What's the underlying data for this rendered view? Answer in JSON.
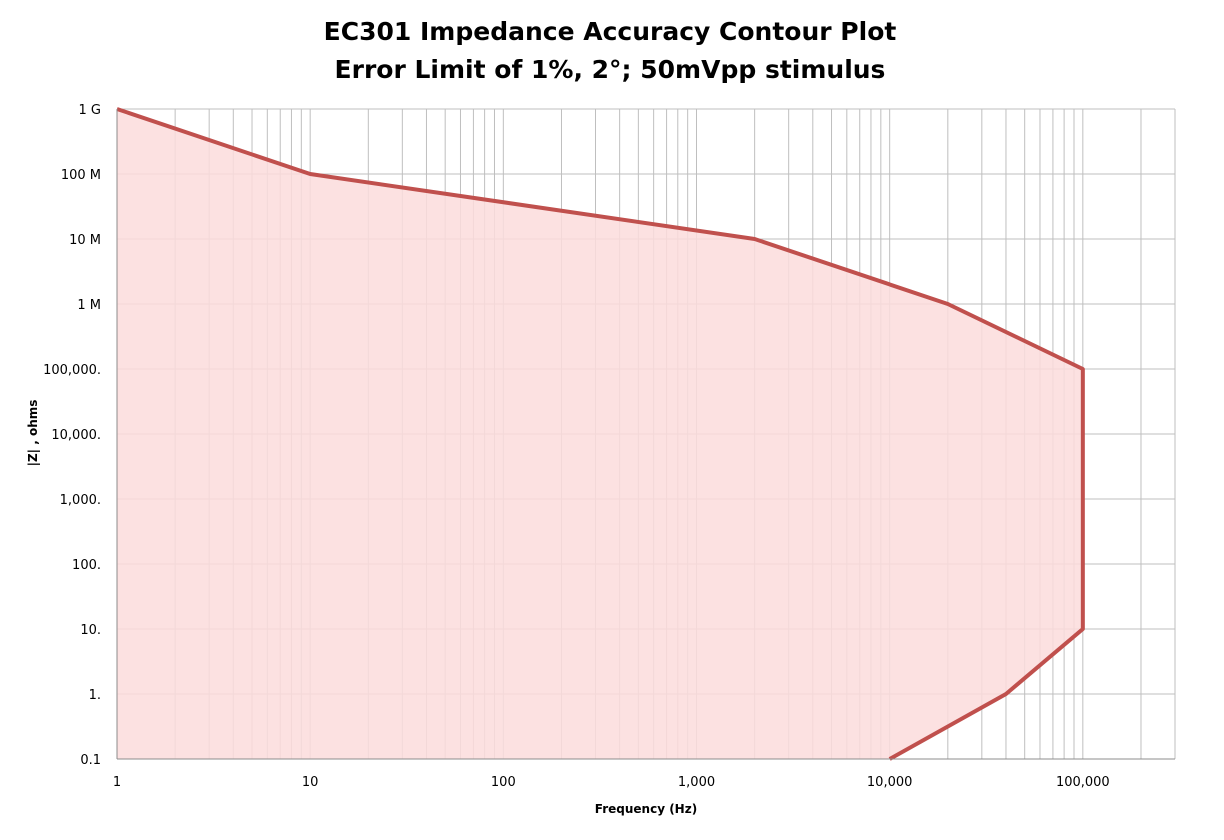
{
  "chart_data": {
    "type": "area",
    "title_line1": "EC301 Impedance Accuracy Contour Plot",
    "title_line2": "Error Limit of 1%, 2°; 50mVpp stimulus",
    "xlabel": "Frequency (Hz)",
    "ylabel": "|Z| , ohms",
    "x_scale": "log",
    "y_scale": "log",
    "xlim": [
      1,
      300000
    ],
    "ylim": [
      0.1,
      1000000000
    ],
    "x_ticks": [
      {
        "value": 1,
        "label": "1"
      },
      {
        "value": 10,
        "label": "10"
      },
      {
        "value": 100,
        "label": "100"
      },
      {
        "value": 1000,
        "label": "1,000"
      },
      {
        "value": 10000,
        "label": "10,000"
      },
      {
        "value": 100000,
        "label": "100,000"
      }
    ],
    "y_ticks": [
      {
        "value": 1000000000,
        "label": "1 G"
      },
      {
        "value": 100000000,
        "label": "100 M"
      },
      {
        "value": 10000000,
        "label": "10 M"
      },
      {
        "value": 1000000,
        "label": "1 M"
      },
      {
        "value": 100000,
        "label": "100,000."
      },
      {
        "value": 10000,
        "label": "10,000."
      },
      {
        "value": 1000,
        "label": "1,000."
      },
      {
        "value": 100,
        "label": "100."
      },
      {
        "value": 10,
        "label": "10."
      },
      {
        "value": 1,
        "label": "1."
      },
      {
        "value": 0.1,
        "label": "0.1"
      }
    ],
    "grid": true,
    "series": [
      {
        "x": [
          1,
          10,
          2000,
          20000,
          100000,
          100000,
          40000,
          10000
        ],
        "y": [
          1000000000,
          100000000,
          10000000,
          1000000,
          100000,
          10,
          1,
          0.1
        ]
      }
    ],
    "fill_color": "#fcdcdc",
    "line_color": "#c0504d",
    "grid_color": "#bfbfbf"
  }
}
